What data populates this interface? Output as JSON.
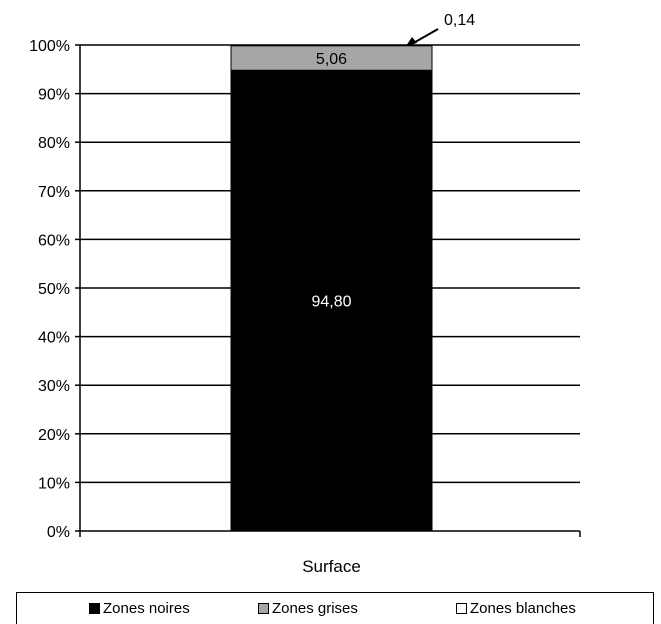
{
  "chart_data": {
    "type": "bar",
    "stacked": true,
    "percent": true,
    "categories": [
      "Surface"
    ],
    "series": [
      {
        "name": "Zones noires",
        "values": [
          94.8
        ],
        "color": "#000000",
        "label": "94,80"
      },
      {
        "name": "Zones grises",
        "values": [
          5.06
        ],
        "color": "#a6a6a6",
        "label": "5,06"
      },
      {
        "name": "Zones blanches",
        "values": [
          0.14
        ],
        "color": "#ffffff",
        "label": "0,14"
      }
    ],
    "yticks": [
      "0%",
      "10%",
      "20%",
      "30%",
      "40%",
      "50%",
      "60%",
      "70%",
      "80%",
      "90%",
      "100%"
    ],
    "ylim": [
      0,
      100
    ],
    "grid": true,
    "legend_position": "bottom"
  }
}
